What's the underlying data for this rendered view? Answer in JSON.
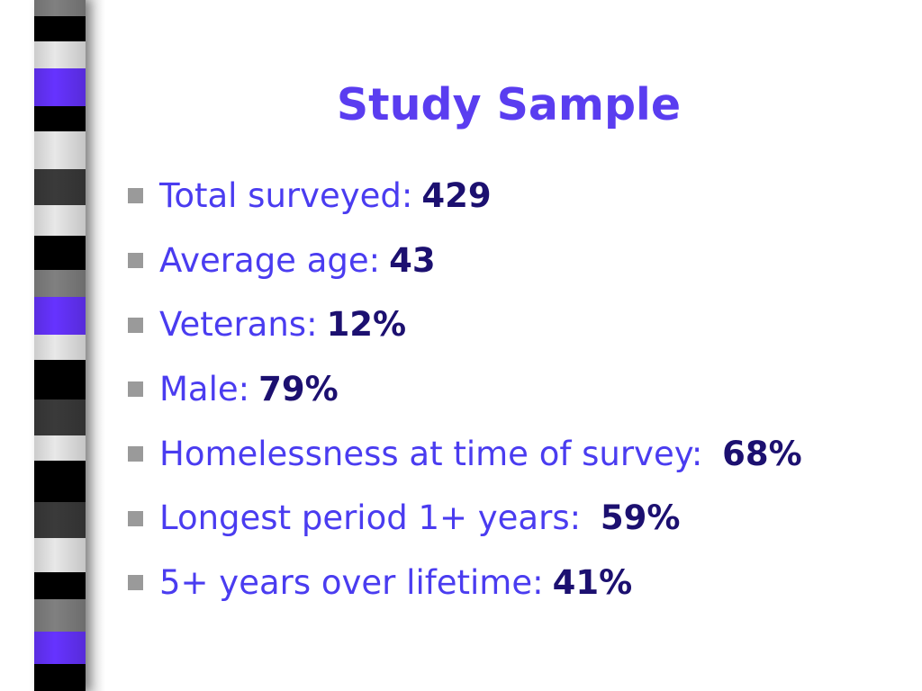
{
  "slide": {
    "title": "Study Sample",
    "colors": {
      "title": "#5a3df0",
      "label": "#4a3cf0",
      "value": "#1c1070",
      "bullet_marker": "#9a9a9a",
      "stripe_black": "#000000",
      "stripe_gray": "#808080",
      "stripe_light": "#e8e8e8",
      "stripe_dark_gray": "#3a3a3a",
      "stripe_purple": "#6633ff"
    },
    "bullets": [
      {
        "label": "Total surveyed:",
        "value": "429"
      },
      {
        "label": "Average age:",
        "value": "43"
      },
      {
        "label": "Veterans:",
        "value": "12%"
      },
      {
        "label": "Male:",
        "value": "79%"
      },
      {
        "label": "Homelessness at time of survey: ",
        "value": "68%"
      },
      {
        "label": "Longest period 1+ years: ",
        "value": "59%"
      },
      {
        "label": "5+ years over lifetime:",
        "value": "41%"
      }
    ]
  }
}
